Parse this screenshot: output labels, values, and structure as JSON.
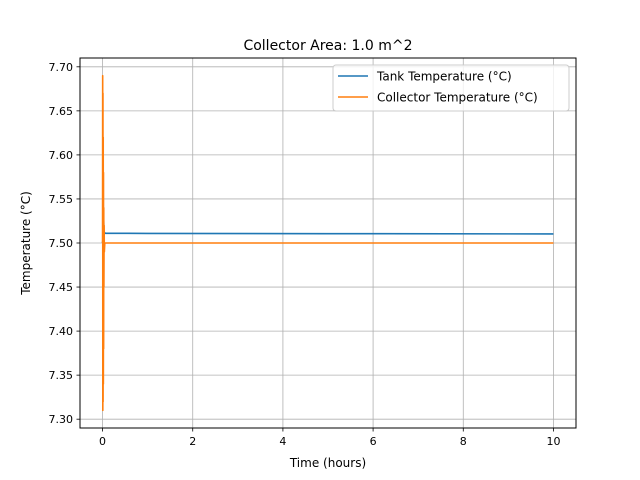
{
  "chart_data": {
    "type": "line",
    "title": "Collector Area: 1.0 m^2",
    "xlabel": "Time (hours)",
    "ylabel": "Temperature (°C)",
    "xlim": [
      -0.5,
      10.5
    ],
    "ylim": [
      7.29,
      7.71
    ],
    "xticks": [
      0,
      2,
      4,
      6,
      8,
      10
    ],
    "xtick_labels": [
      "0",
      "2",
      "4",
      "6",
      "8",
      "10"
    ],
    "yticks": [
      7.3,
      7.35,
      7.4,
      7.45,
      7.5,
      7.55,
      7.6,
      7.65,
      7.7
    ],
    "ytick_labels": [
      "7.30",
      "7.35",
      "7.40",
      "7.45",
      "7.50",
      "7.55",
      "7.60",
      "7.65",
      "7.70"
    ],
    "grid": true,
    "legend_position": "top-right",
    "series": [
      {
        "name": "Tank Temperature (°C)",
        "color": "#1f77b4",
        "x": [
          0,
          0.01,
          0.02,
          0.03,
          0.04,
          0.06,
          0.1,
          1,
          5,
          10
        ],
        "y": [
          7.5,
          7.505,
          7.54,
          7.515,
          7.512,
          7.511,
          7.511,
          7.5109,
          7.5106,
          7.5103
        ]
      },
      {
        "name": "Collector Temperature (°C)",
        "color": "#ff7f0e",
        "x": [
          0,
          0.003,
          0.006,
          0.009,
          0.012,
          0.015,
          0.018,
          0.021,
          0.024,
          0.027,
          0.03,
          0.035,
          0.04,
          0.05,
          0.1,
          1,
          5,
          10
        ],
        "y": [
          7.5,
          7.69,
          7.31,
          7.67,
          7.32,
          7.62,
          7.34,
          7.58,
          7.38,
          7.54,
          7.45,
          7.52,
          7.49,
          7.5,
          7.5,
          7.5,
          7.5,
          7.5
        ]
      }
    ]
  }
}
